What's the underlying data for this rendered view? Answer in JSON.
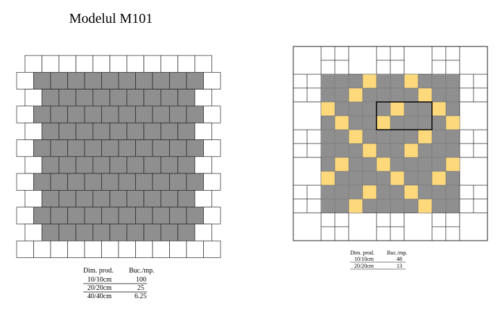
{
  "left": {
    "title": "Modelul M101",
    "table": {
      "header": [
        "Dim. prod.",
        "Buc./mp."
      ],
      "rows": [
        [
          "10/10cm",
          "100"
        ],
        [
          "20/20cm",
          "25"
        ],
        [
          "40/40cm",
          "6.25"
        ]
      ]
    }
  },
  "right": {
    "table": {
      "header": [
        "Dim. prod.",
        "Buc./mp."
      ],
      "rows": [
        [
          "10/10cm",
          "48"
        ],
        [
          "20/20cm",
          "13"
        ]
      ]
    }
  }
}
